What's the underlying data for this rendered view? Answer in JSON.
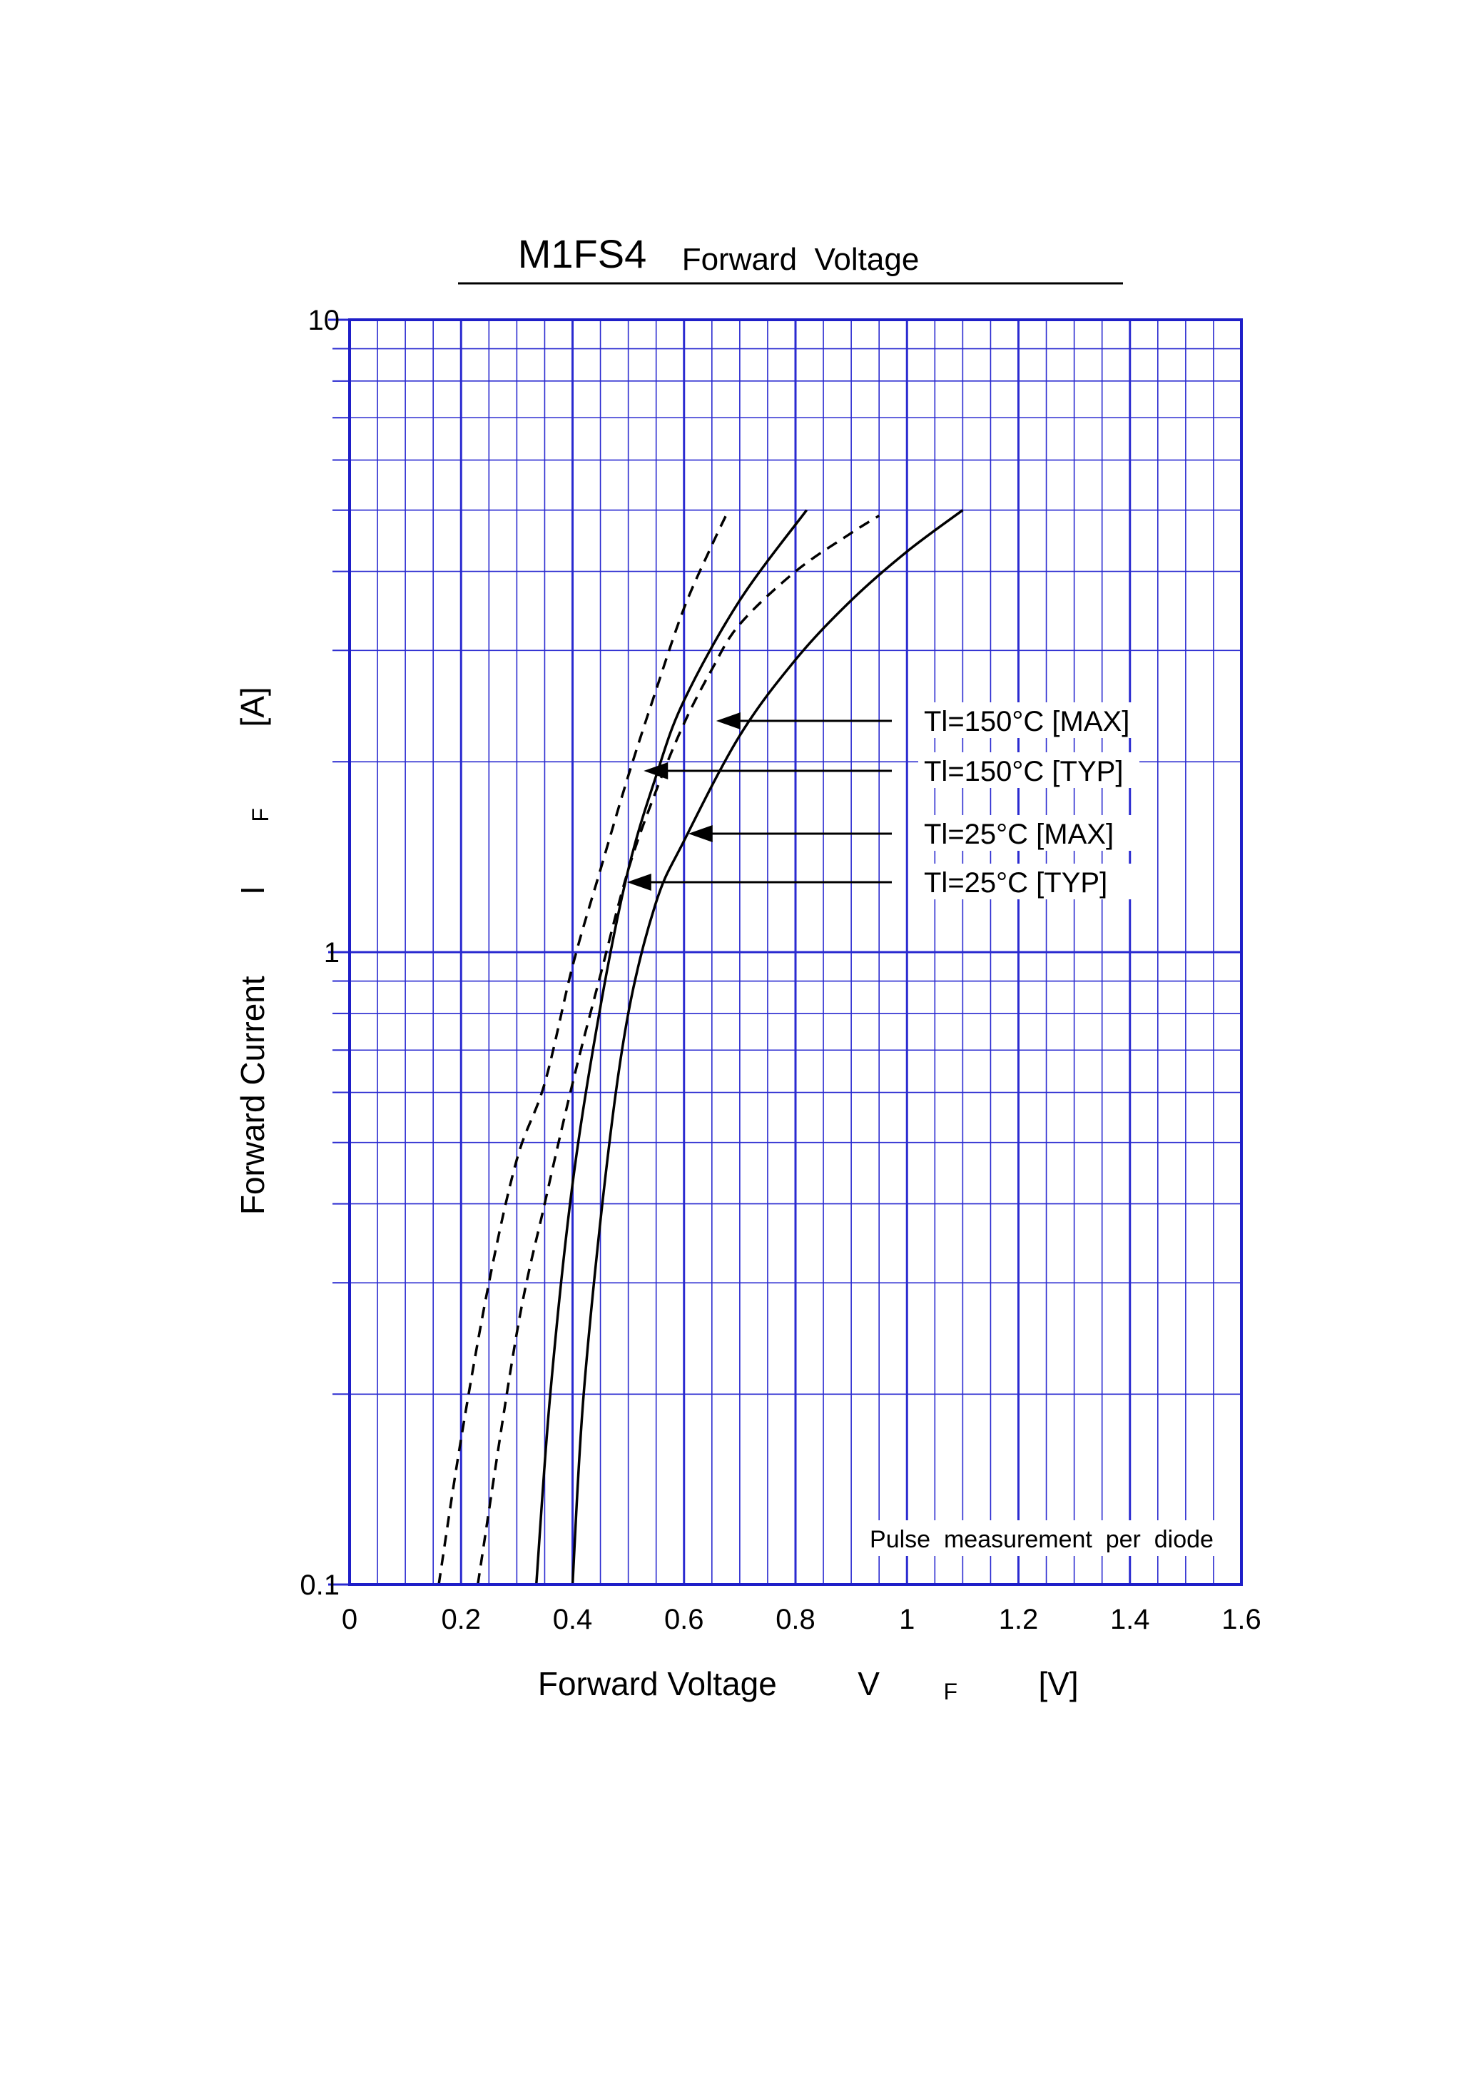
{
  "chart_data": {
    "type": "line",
    "title": "M1FS4",
    "subtitle": "Forward  Voltage",
    "xlabel": "Forward Voltage",
    "xlabel_symbol": "V",
    "xlabel_subscript": "F",
    "xlabel_unit": "[V]",
    "ylabel": "Forward Current",
    "ylabel_symbol": "I",
    "ylabel_subscript": "F",
    "ylabel_unit": "[A]",
    "xlim": [
      0,
      1.6
    ],
    "ylim": [
      0.1,
      10
    ],
    "yscale": "log",
    "grid": true,
    "x_ticks": [
      "0",
      "0.2",
      "0.4",
      "0.6",
      "0.8",
      "1",
      "1.2",
      "1.4",
      "1.6"
    ],
    "y_ticks": [
      "0.1",
      "1",
      "10"
    ],
    "note": "Pulse  measurement  per  diode",
    "colors": {
      "grid": "#2a2ad0",
      "curves": "#000000"
    },
    "series": [
      {
        "name": "Tl=150°C [TYP]",
        "style": "dashed",
        "points": [
          [
            0.16,
            0.1
          ],
          [
            0.2,
            0.17
          ],
          [
            0.25,
            0.3
          ],
          [
            0.3,
            0.47
          ],
          [
            0.35,
            0.62
          ],
          [
            0.4,
            0.95
          ],
          [
            0.45,
            1.35
          ],
          [
            0.5,
            1.9
          ],
          [
            0.55,
            2.6
          ],
          [
            0.6,
            3.5
          ],
          [
            0.65,
            4.4
          ],
          [
            0.68,
            5.0
          ]
        ],
        "arrow_to": [
          0.52,
          1.85
        ]
      },
      {
        "name": "Tl=150°C [MAX]",
        "style": "dashed",
        "points": [
          [
            0.23,
            0.1
          ],
          [
            0.3,
            0.25
          ],
          [
            0.35,
            0.4
          ],
          [
            0.4,
            0.62
          ],
          [
            0.45,
            0.92
          ],
          [
            0.5,
            1.35
          ],
          [
            0.55,
            1.8
          ],
          [
            0.6,
            2.3
          ],
          [
            0.65,
            2.8
          ],
          [
            0.7,
            3.3
          ],
          [
            0.8,
            4.0
          ],
          [
            0.9,
            4.6
          ],
          [
            0.95,
            4.9
          ]
        ],
        "arrow_to": [
          0.65,
          2.2
        ]
      },
      {
        "name": "Tl=25°C [TYP]",
        "style": "solid",
        "points": [
          [
            0.335,
            0.1
          ],
          [
            0.36,
            0.2
          ],
          [
            0.4,
            0.43
          ],
          [
            0.45,
            0.82
          ],
          [
            0.5,
            1.35
          ],
          [
            0.55,
            1.9
          ],
          [
            0.6,
            2.5
          ],
          [
            0.7,
            3.6
          ],
          [
            0.82,
            5.0
          ]
        ],
        "arrow_to": [
          0.49,
          1.2
        ]
      },
      {
        "name": "Tl=25°C [MAX]",
        "style": "solid",
        "points": [
          [
            0.4,
            0.1
          ],
          [
            0.42,
            0.2
          ],
          [
            0.46,
            0.45
          ],
          [
            0.5,
            0.8
          ],
          [
            0.55,
            1.2
          ],
          [
            0.6,
            1.5
          ],
          [
            0.7,
            2.2
          ],
          [
            0.8,
            2.9
          ],
          [
            0.9,
            3.6
          ],
          [
            1.0,
            4.3
          ],
          [
            1.1,
            5.0
          ]
        ],
        "arrow_to": [
          0.6,
          1.45
        ]
      }
    ],
    "legend_order": [
      "Tl=150°C [MAX]",
      "Tl=150°C [TYP]",
      "Tl=25°C [MAX]",
      "Tl=25°C [TYP]"
    ]
  }
}
